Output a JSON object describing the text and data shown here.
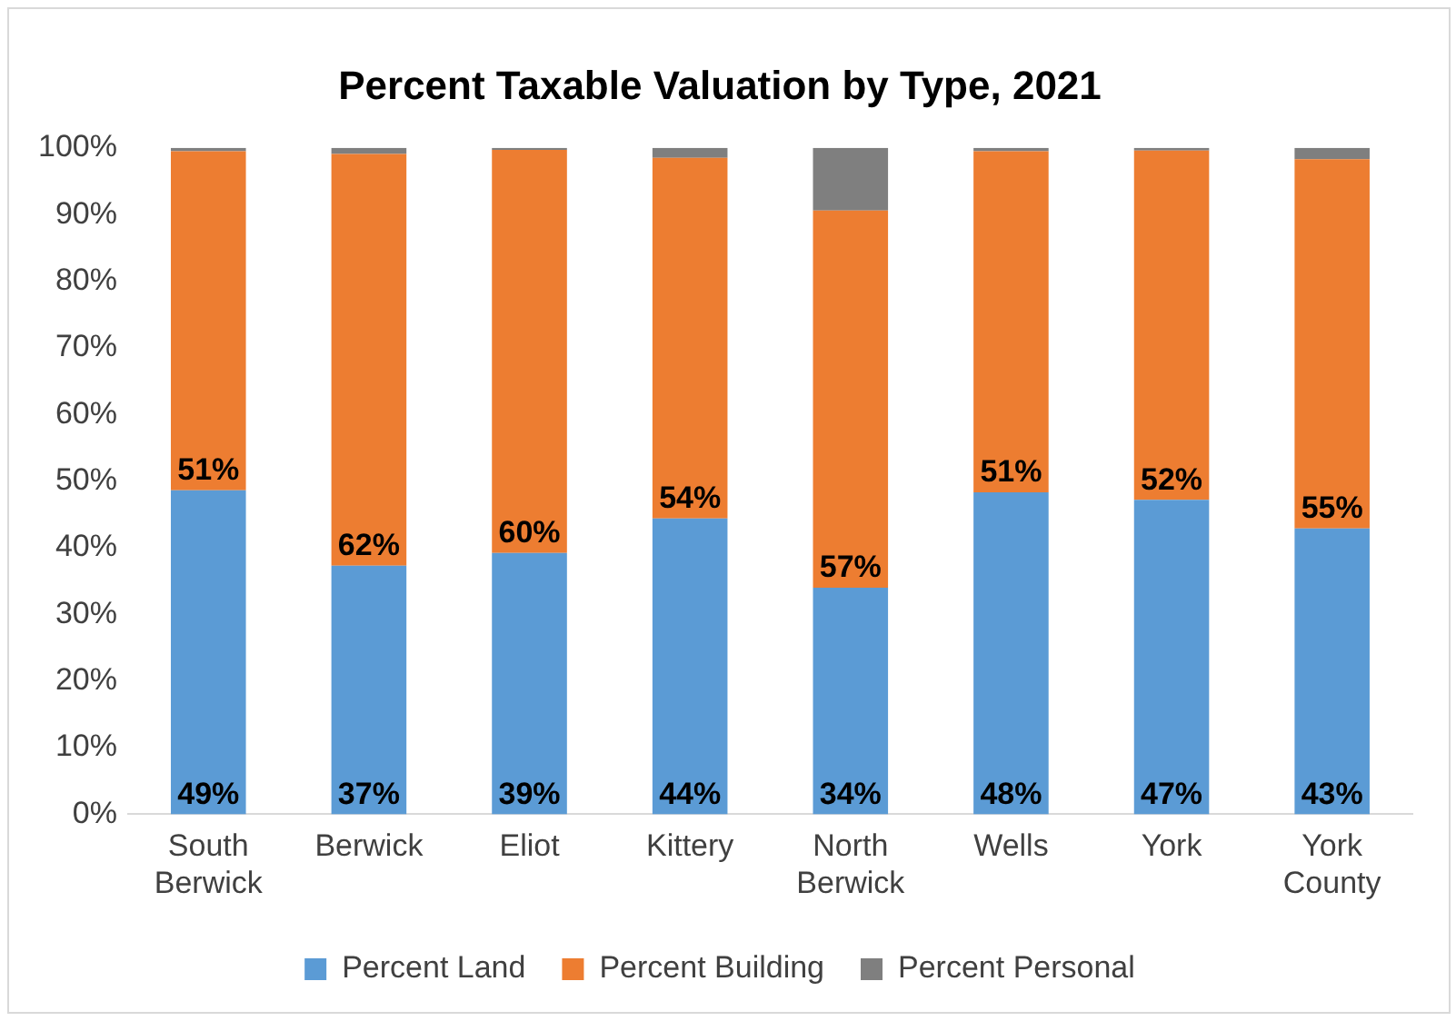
{
  "chart_data": {
    "type": "bar",
    "title": "Percent Taxable Valuation by Type, 2021",
    "stacked": true,
    "categories": [
      "South Berwick",
      "Berwick",
      "Eliot",
      "Kittery",
      "North Berwick",
      "Wells",
      "York",
      "York County"
    ],
    "series": [
      {
        "name": "Percent Land",
        "color": "#5b9bd5",
        "values": [
          48.6,
          37.3,
          39.2,
          44.4,
          34.0,
          48.3,
          47.2,
          42.9
        ],
        "value_labels": [
          "49%",
          "37%",
          "39%",
          "44%",
          "34%",
          "48%",
          "47%",
          "43%"
        ]
      },
      {
        "name": "Percent Building",
        "color": "#ed7d31",
        "values": [
          50.9,
          61.8,
          60.5,
          54.1,
          56.6,
          51.2,
          52.4,
          55.4
        ],
        "value_labels": [
          "51%",
          "62%",
          "60%",
          "54%",
          "57%",
          "51%",
          "52%",
          "55%"
        ]
      },
      {
        "name": "Percent Personal",
        "color": "#7f7f7f",
        "values": [
          0.5,
          0.9,
          0.3,
          1.5,
          9.4,
          0.5,
          0.4,
          1.7
        ]
      }
    ],
    "ylim": [
      0,
      100
    ],
    "yticks": [
      {
        "value": 0,
        "label": "0%"
      },
      {
        "value": 10,
        "label": "10%"
      },
      {
        "value": 20,
        "label": "20%"
      },
      {
        "value": 30,
        "label": "30%"
      },
      {
        "value": 40,
        "label": "40%"
      },
      {
        "value": 50,
        "label": "50%"
      },
      {
        "value": 60,
        "label": "60%"
      },
      {
        "value": 70,
        "label": "70%"
      },
      {
        "value": 80,
        "label": "80%"
      },
      {
        "value": 90,
        "label": "90%"
      },
      {
        "value": 100,
        "label": "100%"
      }
    ],
    "grid": false,
    "legend": "bottom"
  }
}
